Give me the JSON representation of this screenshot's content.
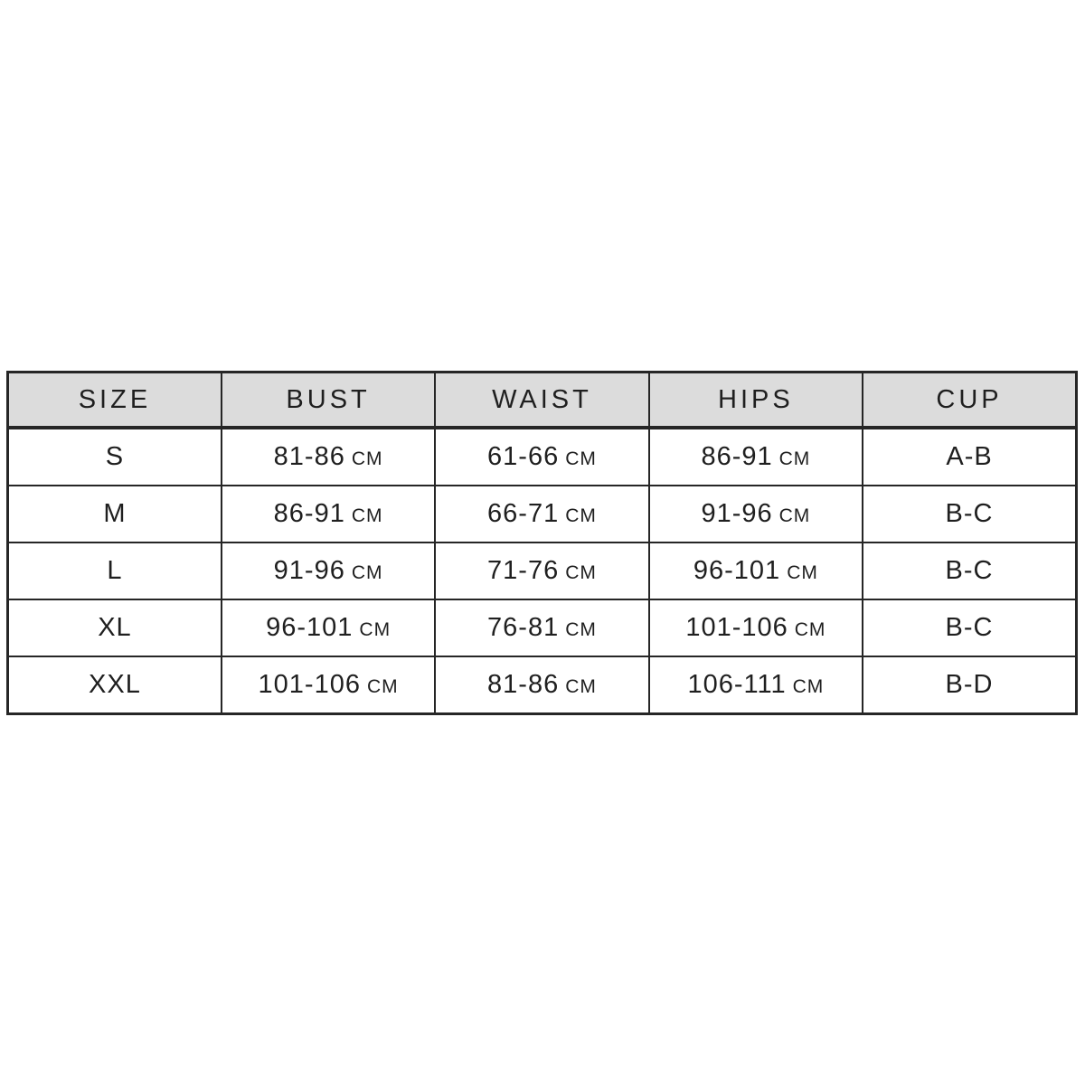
{
  "page": {
    "background_color": "#ffffff"
  },
  "chart_data": {
    "type": "table",
    "columns": [
      "SIZE",
      "BUST",
      "WAIST",
      "HIPS",
      "CUP"
    ],
    "unit": "CM",
    "rows": [
      {
        "size": "S",
        "bust": "81-86",
        "waist": "61-66",
        "hips": "86-91",
        "cup": "A-B"
      },
      {
        "size": "M",
        "bust": "86-91",
        "waist": "66-71",
        "hips": "91-96",
        "cup": "B-C"
      },
      {
        "size": "L",
        "bust": "91-96",
        "waist": "71-76",
        "hips": "96-101",
        "cup": "B-C"
      },
      {
        "size": "XL",
        "bust": "96-101",
        "waist": "76-81",
        "hips": "101-106",
        "cup": "B-C"
      },
      {
        "size": "XXL",
        "bust": "101-106",
        "waist": "81-86",
        "hips": "106-111",
        "cup": "B-D"
      }
    ],
    "layout": {
      "header_background": "#dcdcdc",
      "border_color": "#262626",
      "text_color": "#1f1f1f",
      "grid": "on"
    }
  }
}
